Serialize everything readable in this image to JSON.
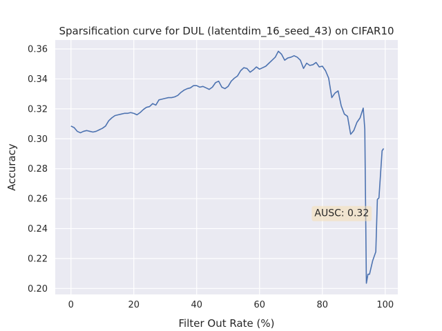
{
  "chart_data": {
    "type": "line",
    "title": "Sparsification curve for DUL (latentdim_16_seed_43) on CIFAR10",
    "xlabel": "Filter Out Rate (%)",
    "ylabel": "Accuracy",
    "xlim": [
      -5,
      104
    ],
    "ylim": [
      0.196,
      0.366
    ],
    "xticks": [
      0,
      20,
      40,
      60,
      80,
      100
    ],
    "yticks": [
      0.2,
      0.22,
      0.24,
      0.26,
      0.28,
      0.3,
      0.32,
      0.34,
      0.36
    ],
    "xtick_labels": [
      "0",
      "20",
      "40",
      "60",
      "80",
      "100"
    ],
    "ytick_labels": [
      "0.20",
      "0.22",
      "0.24",
      "0.26",
      "0.28",
      "0.30",
      "0.32",
      "0.34",
      "0.36"
    ],
    "grid": true,
    "annotation": {
      "text": "AUSC: 0.32",
      "x": 77.5,
      "y": 0.2505
    },
    "series": [
      {
        "color": "#4c72b0",
        "x": [
          0,
          1,
          2,
          3,
          4,
          5,
          6,
          7,
          8,
          9,
          10,
          11,
          12,
          13,
          14,
          15,
          16,
          17,
          18,
          19,
          20,
          21,
          22,
          23,
          24,
          25,
          26,
          27,
          28,
          29,
          30,
          31,
          32,
          33,
          34,
          35,
          36,
          37,
          38,
          39,
          40,
          41,
          42,
          43,
          44,
          45,
          46,
          47,
          48,
          49,
          50,
          51,
          52,
          53,
          54,
          55,
          56,
          57,
          58,
          59,
          60,
          61,
          62,
          63,
          64,
          65,
          66,
          67,
          68,
          69,
          70,
          71,
          72,
          73,
          74,
          75,
          76,
          77,
          78,
          79,
          80,
          81,
          82,
          83,
          84,
          85,
          86,
          87,
          88,
          89,
          90,
          91,
          92,
          93,
          93.5,
          94,
          94.5,
          95,
          96,
          97,
          97.5,
          98,
          99,
          99.5
        ],
        "y": [
          0.3085,
          0.3075,
          0.305,
          0.304,
          0.305,
          0.3055,
          0.305,
          0.3045,
          0.305,
          0.306,
          0.307,
          0.3085,
          0.312,
          0.314,
          0.3155,
          0.316,
          0.3165,
          0.317,
          0.317,
          0.3175,
          0.317,
          0.316,
          0.3175,
          0.3195,
          0.321,
          0.3215,
          0.3235,
          0.3225,
          0.326,
          0.3265,
          0.327,
          0.3275,
          0.3275,
          0.328,
          0.329,
          0.331,
          0.3325,
          0.3335,
          0.334,
          0.3355,
          0.3355,
          0.3345,
          0.335,
          0.334,
          0.333,
          0.3345,
          0.3375,
          0.3385,
          0.3345,
          0.3335,
          0.335,
          0.3385,
          0.3405,
          0.342,
          0.3455,
          0.3475,
          0.347,
          0.3445,
          0.346,
          0.348,
          0.3465,
          0.3475,
          0.3485,
          0.3505,
          0.3525,
          0.3545,
          0.3585,
          0.3565,
          0.3525,
          0.354,
          0.3545,
          0.3555,
          0.3545,
          0.3525,
          0.347,
          0.3505,
          0.349,
          0.3495,
          0.351,
          0.348,
          0.3485,
          0.3455,
          0.3405,
          0.3275,
          0.3305,
          0.332,
          0.322,
          0.3165,
          0.315,
          0.303,
          0.3055,
          0.311,
          0.314,
          0.3205,
          0.3065,
          0.2035,
          0.2095,
          0.2095,
          0.2185,
          0.2245,
          0.2595,
          0.2605,
          0.292,
          0.2935
        ]
      }
    ]
  }
}
